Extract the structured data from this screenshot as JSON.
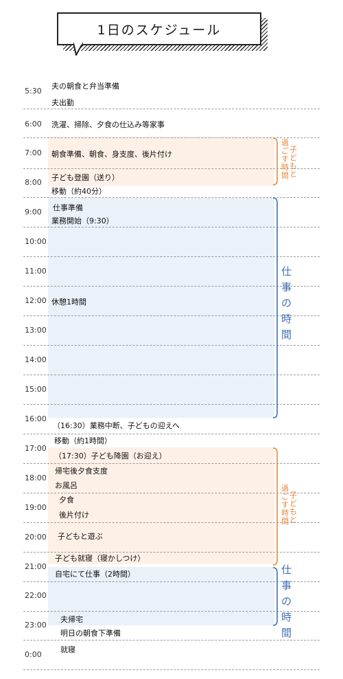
{
  "title": "1日のスケジュール",
  "times": [
    "5:30",
    "6:00",
    "7:00",
    "8:00",
    "9:00",
    "10:00",
    "11:00",
    "12:00",
    "13:00",
    "14:00",
    "15:00",
    "16:00",
    "17:00",
    "18:00",
    "19:00",
    "20:00",
    "21:00",
    "22:00",
    "23:00",
    "0:00"
  ],
  "events": [
    "夫の朝食と弁当準備",
    "夫出勤",
    "洗濯、掃除、夕食の仕込み等家事",
    "朝食準備、朝食、身支度、後片付け",
    "子ども登園（送り）",
    "移動（約40分）",
    "仕事準備",
    "業務開始（9:30）",
    "休憩1時間",
    "（16:30）業務中断、子どもの迎えへ",
    "移動（約1時間）",
    "（17:30）子ども降園（お迎え）",
    "帰宅後夕食支度",
    "お風呂",
    "夕食",
    "後片付け",
    "子どもと遊ぶ",
    "子ども就寝（寝かしつけ）",
    "自宅にて仕事（2時間）",
    "夫帰宅",
    "明日の朝食下準備",
    "就寝"
  ],
  "side_labels": {
    "kids_time_col1": "子どもと",
    "kids_time_col2": "過ごす時間",
    "work_time": "仕事の時間"
  },
  "colors": {
    "orange": "#e8883a",
    "blue": "#3f6fb5",
    "orange_band": "#fdf1e7",
    "blue_band": "#eaf1f8"
  }
}
